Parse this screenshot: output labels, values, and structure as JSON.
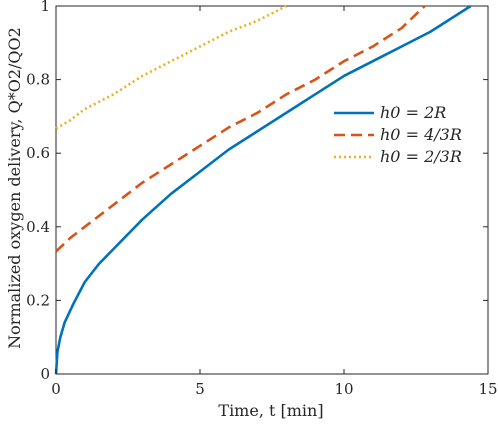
{
  "chart_data": {
    "type": "line",
    "title": "",
    "xlabel": "Time, t [min]",
    "ylabel": "Normalized oxygen delivery, Q*O2/QO2",
    "xlim": [
      0,
      15
    ],
    "ylim": [
      0,
      1
    ],
    "xticks": [
      "0",
      "5",
      "10",
      "15"
    ],
    "yticks": [
      "0",
      "0.2",
      "0.4",
      "0.6",
      "0.8",
      "1"
    ],
    "grid": false,
    "legend_position": "right",
    "series": [
      {
        "name": "h0 = 2R",
        "color": "#0072BD",
        "dash": "solid",
        "x": [
          0,
          0.05,
          0.15,
          0.3,
          0.6,
          1,
          1.5,
          2,
          3,
          4,
          5,
          6,
          7,
          8,
          9,
          10,
          11,
          12,
          13,
          14,
          14.4
        ],
        "y": [
          0,
          0.06,
          0.1,
          0.14,
          0.19,
          0.25,
          0.3,
          0.34,
          0.42,
          0.49,
          0.55,
          0.61,
          0.66,
          0.71,
          0.76,
          0.81,
          0.85,
          0.89,
          0.93,
          0.98,
          1.0
        ]
      },
      {
        "name": "h0 = 4/3R",
        "color": "#D95319",
        "dash": "dashed",
        "x": [
          0,
          0.5,
          1,
          2,
          3,
          4,
          5,
          6,
          7,
          8,
          9,
          10,
          11,
          12,
          12.8
        ],
        "y": [
          0.333,
          0.37,
          0.4,
          0.46,
          0.52,
          0.57,
          0.62,
          0.67,
          0.71,
          0.76,
          0.8,
          0.85,
          0.89,
          0.94,
          1.0
        ]
      },
      {
        "name": "h0 = 2/3R",
        "color": "#EDB120",
        "dash": "dotted",
        "x": [
          0,
          0.5,
          1,
          2,
          3,
          4,
          5,
          6,
          7,
          8
        ],
        "y": [
          0.667,
          0.69,
          0.72,
          0.76,
          0.81,
          0.85,
          0.89,
          0.93,
          0.96,
          1.0
        ]
      }
    ],
    "legend": {
      "items": [
        "h0 = 2R",
        "h0 = 4/3R",
        "h0 = 2/3R"
      ]
    }
  }
}
